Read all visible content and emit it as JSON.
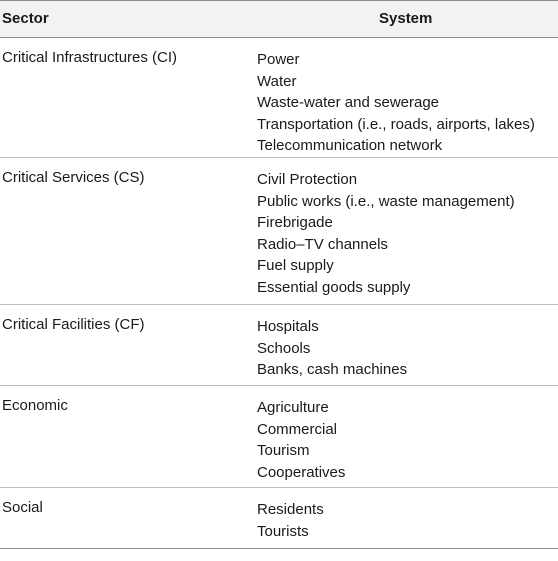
{
  "headers": {
    "sector": "Sector",
    "system": "System"
  },
  "rows": [
    {
      "sector": "Critical Infrastructures (CI)",
      "systems": [
        "Power",
        "Water",
        "Waste-water and sewerage",
        "Transportation (i.e., roads, airports, lakes)",
        "Telecommunication network"
      ]
    },
    {
      "sector": "Critical Services (CS)",
      "systems": [
        "Civil Protection",
        "Public works (i.e., waste management)",
        "Firebrigade",
        "Radio–TV channels",
        "Fuel supply",
        "Essential goods supply"
      ]
    },
    {
      "sector": "Critical Facilities (CF)",
      "systems": [
        "Hospitals",
        "Schools",
        "Banks, cash machines"
      ]
    },
    {
      "sector": "Economic",
      "systems": [
        "Agriculture",
        "Commercial",
        "Tourism",
        "Cooperatives"
      ]
    },
    {
      "sector": "Social",
      "systems": [
        "Residents",
        "Tourists"
      ]
    }
  ]
}
